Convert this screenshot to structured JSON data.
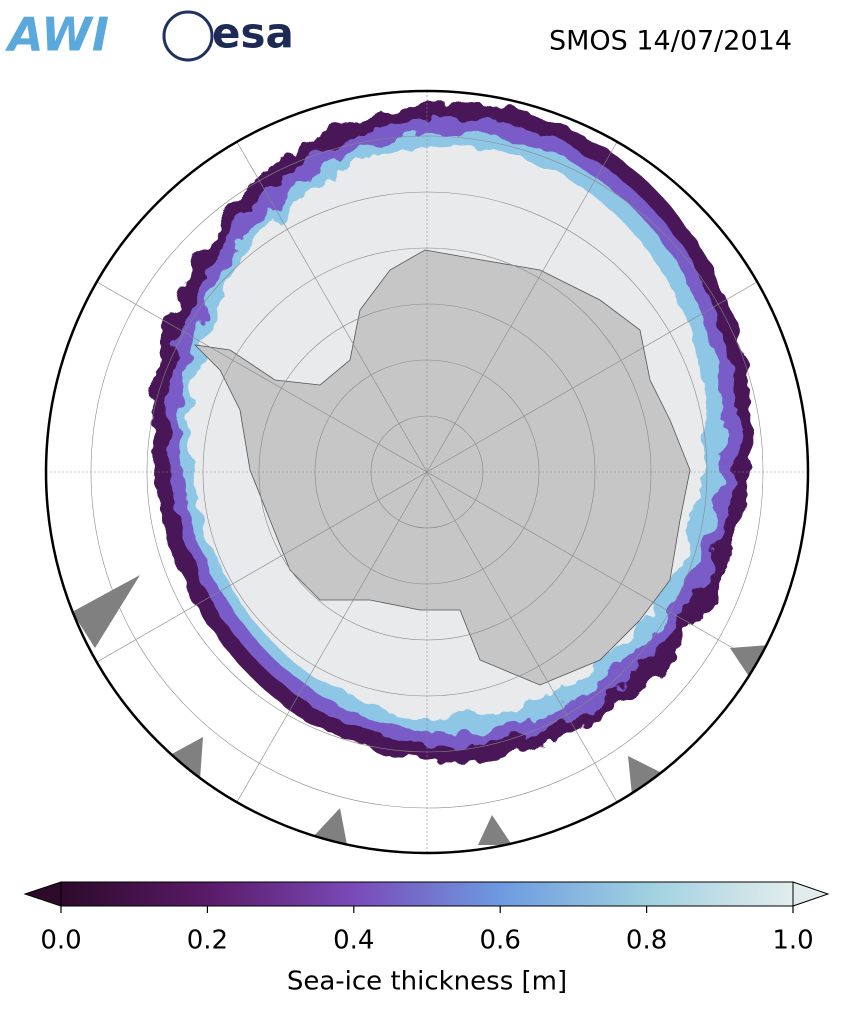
{
  "header": {
    "logos": [
      "AWI",
      "esa"
    ],
    "title": "SMOS 14/07/2014"
  },
  "colorbar": {
    "label": "Sea-ice thickness [m]",
    "lim": [
      0,
      1
    ],
    "ticks": [
      {
        "value": 0,
        "label": "0.0"
      },
      {
        "value": 0.2,
        "label": "0.2"
      },
      {
        "value": 0.4,
        "label": "0.4"
      },
      {
        "value": 0.6,
        "label": "0.6"
      },
      {
        "value": 0.8,
        "label": "0.8"
      },
      {
        "value": 1,
        "label": "1.0"
      }
    ],
    "colors": [
      "#2d0a2a",
      "#5a1a68",
      "#7a4ab8",
      "#6d9ae0",
      "#9fd0e0",
      "#e2ecec"
    ]
  }
}
